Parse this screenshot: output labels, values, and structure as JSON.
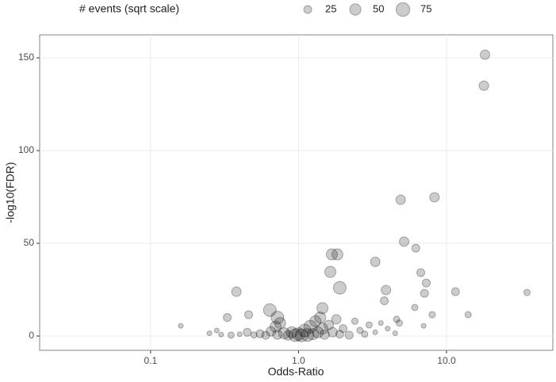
{
  "chart_data": {
    "type": "scatter",
    "x_label": "Odds-Ratio",
    "y_label": "-log10(FDR)",
    "xlog": true,
    "xlim": [
      0.0178,
      52.3
    ],
    "ylim": [
      -7.7,
      162.4
    ],
    "xticks": [
      {
        "value": 0.1,
        "label": "0.1"
      },
      {
        "value": 1,
        "label": "1.0"
      },
      {
        "value": 10,
        "label": "10.0"
      }
    ],
    "yticks": [
      0,
      50,
      100,
      150
    ],
    "grid": true,
    "legend_position": "top",
    "size_legend": {
      "title": "# events (sqrt scale)",
      "values": [
        25,
        50,
        75
      ]
    },
    "series": [
      {
        "color": "#000000",
        "alpha": 0.2,
        "x": [
          18.2,
          17.9,
          4.9,
          8.3,
          5.17,
          6.2,
          1.68,
          1.83,
          3.3,
          1.64,
          6.7,
          1.9,
          7.3,
          3.9,
          0.38,
          11.5,
          35,
          7.1,
          3.8,
          6.1,
          0.64,
          1.45,
          14,
          8,
          0.16,
          0.33,
          0.46,
          0.72,
          4.6,
          4.8,
          7,
          0.25,
          0.28,
          0.3,
          0.35,
          0.4,
          0.45,
          0.5,
          0.55,
          0.6,
          0.65,
          0.7,
          0.72,
          0.75,
          0.8,
          0.85,
          0.9,
          0.95,
          1.0,
          1.05,
          1.1,
          1.15,
          1.2,
          1.25,
          1.3,
          1.35,
          1.4,
          1.45,
          1.5,
          1.6,
          1.7,
          1.8,
          1.9,
          2.0,
          2.2,
          2.4,
          2.6,
          2.8,
          3.0,
          3.3,
          3.6,
          4.0,
          4.5
        ],
        "y": [
          151.7,
          135,
          73.5,
          74.8,
          50.9,
          47.4,
          44,
          44,
          40,
          34.6,
          34.2,
          26,
          28.6,
          24.8,
          23.9,
          23.9,
          23.5,
          23,
          19,
          15.4,
          14,
          15,
          11.5,
          11.5,
          5.5,
          10,
          11.5,
          10,
          9,
          7,
          5.5,
          1.5,
          3,
          0.8,
          0.5,
          1,
          2,
          0.6,
          1.2,
          0.4,
          2.5,
          5,
          0.8,
          7,
          1.5,
          0.3,
          2,
          0.5,
          1,
          0.3,
          3,
          0.6,
          5,
          1,
          8,
          2,
          10,
          4,
          0.8,
          6,
          2,
          9,
          1,
          4,
          0.5,
          8,
          3,
          1,
          6,
          2,
          7,
          4,
          1.5
        ],
        "sizes": [
          36,
          36,
          36,
          36,
          36,
          25,
          49,
          49,
          36,
          49,
          25,
          64,
          25,
          36,
          36,
          25,
          16,
          25,
          25,
          16,
          64,
          49,
          16,
          16,
          9,
          25,
          25,
          64,
          16,
          16,
          9,
          9,
          9,
          9,
          16,
          9,
          25,
          16,
          25,
          25,
          36,
          49,
          36,
          49,
          49,
          36,
          49,
          64,
          64,
          64,
          64,
          64,
          64,
          49,
          49,
          49,
          49,
          49,
          36,
          36,
          36,
          36,
          25,
          25,
          25,
          16,
          16,
          16,
          16,
          9,
          9,
          9,
          9
        ]
      }
    ]
  }
}
